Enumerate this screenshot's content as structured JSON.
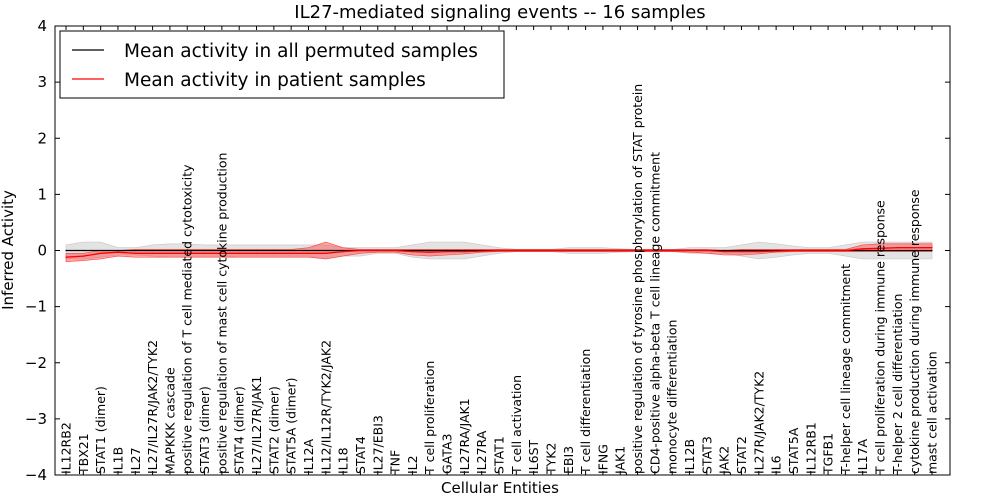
{
  "chart_data": {
    "type": "line",
    "title": "IL27-mediated signaling events -- 16 samples",
    "xlabel": "Cellular Entities",
    "ylabel": "Inferred Activity",
    "ylim": [
      -4,
      4
    ],
    "yticks": [
      -4,
      -3,
      -2,
      -1,
      0,
      1,
      2,
      3,
      4
    ],
    "legend_position": "top-left",
    "categories": [
      "IL12RB2",
      "TBX21",
      "STAT1 (dimer)",
      "IL1B",
      "IL27",
      "IL27/IL27R/JAK2/TYK2",
      "MAPKKK cascade",
      "positive regulation of T cell mediated cytotoxicity",
      "STAT3 (dimer)",
      "positive regulation of mast cell cytokine production",
      "STAT4 (dimer)",
      "IL27/IL27R/JAK1",
      "STAT2 (dimer)",
      "STAT5A (dimer)",
      "IL12A",
      "IL12/IL12R/TYK2/JAK2",
      "IL18",
      "STAT4",
      "IL27/EBI3",
      "TNF",
      "IL2",
      "T cell proliferation",
      "GATA3",
      "IL27RA/JAK1",
      "IL27RA",
      "STAT1",
      "T cell activation",
      "IL6ST",
      "TYK2",
      "EBI3",
      "T cell differentiation",
      "IFNG",
      "JAK1",
      "positive regulation of tyrosine phosphorylation of STAT protein",
      "CD4-positive alpha-beta T cell lineage commitment",
      "monocyte differentiation",
      "IL12B",
      "STAT3",
      "JAK2",
      "STAT2",
      "IL27R/JAK2/TYK2",
      "IL6",
      "STAT5A",
      "IL12RB1",
      "TGFB1",
      "T-helper cell lineage commitment",
      "IL17A",
      "T cell proliferation during immune response",
      "T-helper 2 cell differentiation",
      "cytokine production during immune response",
      "mast cell activation"
    ],
    "series": [
      {
        "name": "Mean activity in all permuted samples",
        "color": "#000000",
        "values": [
          0.0,
          0.0,
          0.0,
          0.0,
          0.0,
          0.0,
          0.0,
          0.0,
          0.0,
          0.0,
          0.0,
          0.0,
          0.0,
          0.0,
          0.0,
          0.0,
          0.0,
          0.0,
          0.0,
          0.0,
          0.0,
          0.0,
          0.0,
          0.0,
          0.0,
          0.0,
          0.0,
          0.0,
          0.0,
          0.0,
          0.0,
          0.0,
          0.0,
          0.0,
          0.0,
          0.0,
          0.0,
          0.0,
          0.0,
          0.0,
          0.0,
          0.0,
          0.0,
          0.0,
          0.0,
          0.0,
          0.0,
          0.0,
          0.0,
          0.0,
          0.0
        ],
        "band_upper": [
          0.1,
          0.15,
          0.15,
          0.05,
          0.05,
          0.1,
          0.12,
          0.12,
          0.1,
          0.1,
          0.1,
          0.1,
          0.1,
          0.1,
          0.1,
          0.1,
          0.05,
          0.05,
          0.05,
          0.05,
          0.1,
          0.15,
          0.15,
          0.15,
          0.1,
          0.05,
          0.02,
          0.02,
          0.02,
          0.05,
          0.05,
          0.05,
          0.03,
          0.02,
          0.02,
          0.02,
          0.05,
          0.05,
          0.05,
          0.1,
          0.15,
          0.12,
          0.08,
          0.05,
          0.05,
          0.1,
          0.15,
          0.15,
          0.15,
          0.15,
          0.15
        ],
        "band_lower": [
          -0.15,
          -0.15,
          -0.12,
          -0.08,
          -0.08,
          -0.1,
          -0.12,
          -0.12,
          -0.12,
          -0.12,
          -0.1,
          -0.1,
          -0.1,
          -0.1,
          -0.1,
          -0.15,
          -0.1,
          -0.1,
          -0.05,
          -0.05,
          -0.12,
          -0.15,
          -0.15,
          -0.15,
          -0.1,
          -0.05,
          -0.02,
          -0.02,
          -0.02,
          -0.05,
          -0.05,
          -0.05,
          -0.03,
          -0.02,
          -0.02,
          -0.02,
          -0.05,
          -0.05,
          -0.05,
          -0.1,
          -0.15,
          -0.12,
          -0.08,
          -0.05,
          -0.05,
          -0.1,
          -0.15,
          -0.15,
          -0.15,
          -0.15,
          -0.15
        ]
      },
      {
        "name": "Mean activity in patient samples",
        "color": "#ff0000",
        "values": [
          -0.12,
          -0.1,
          -0.05,
          -0.03,
          -0.05,
          -0.05,
          -0.05,
          -0.05,
          -0.05,
          -0.05,
          -0.05,
          -0.05,
          -0.05,
          -0.05,
          -0.05,
          -0.05,
          -0.02,
          0.0,
          0.0,
          0.0,
          -0.02,
          -0.03,
          -0.02,
          -0.02,
          -0.01,
          0.0,
          0.0,
          0.0,
          0.0,
          0.0,
          0.0,
          0.0,
          0.0,
          0.0,
          0.0,
          0.0,
          0.0,
          0.0,
          -0.02,
          -0.02,
          -0.02,
          -0.01,
          0.0,
          0.0,
          0.0,
          0.0,
          0.03,
          0.04,
          0.05,
          0.05,
          0.05
        ],
        "band_upper": [
          -0.05,
          -0.05,
          0.0,
          0.0,
          0.02,
          0.02,
          0.02,
          0.02,
          0.02,
          0.02,
          0.02,
          0.02,
          0.02,
          0.02,
          0.05,
          0.15,
          0.05,
          0.02,
          0.02,
          0.02,
          0.02,
          0.02,
          0.02,
          0.02,
          0.02,
          0.02,
          0.02,
          0.02,
          0.02,
          0.02,
          0.02,
          0.02,
          0.02,
          0.02,
          0.02,
          0.02,
          0.02,
          0.02,
          0.0,
          0.02,
          0.02,
          0.02,
          0.02,
          0.02,
          0.02,
          0.02,
          0.1,
          0.12,
          0.12,
          0.12,
          0.12
        ],
        "band_lower": [
          -0.2,
          -0.18,
          -0.15,
          -0.1,
          -0.12,
          -0.12,
          -0.12,
          -0.12,
          -0.12,
          -0.12,
          -0.12,
          -0.12,
          -0.12,
          -0.12,
          -0.12,
          -0.15,
          -0.1,
          -0.05,
          -0.03,
          -0.03,
          -0.08,
          -0.1,
          -0.08,
          -0.06,
          -0.03,
          -0.02,
          -0.02,
          -0.02,
          -0.02,
          -0.02,
          -0.02,
          -0.02,
          -0.02,
          -0.02,
          -0.02,
          -0.02,
          -0.03,
          -0.05,
          -0.08,
          -0.08,
          -0.06,
          -0.03,
          -0.02,
          -0.02,
          -0.02,
          -0.02,
          -0.02,
          -0.02,
          -0.02,
          -0.02,
          -0.02
        ]
      }
    ],
    "band_colors": {
      "permuted": "#c8c8c8",
      "patient": "#ff4040"
    }
  }
}
